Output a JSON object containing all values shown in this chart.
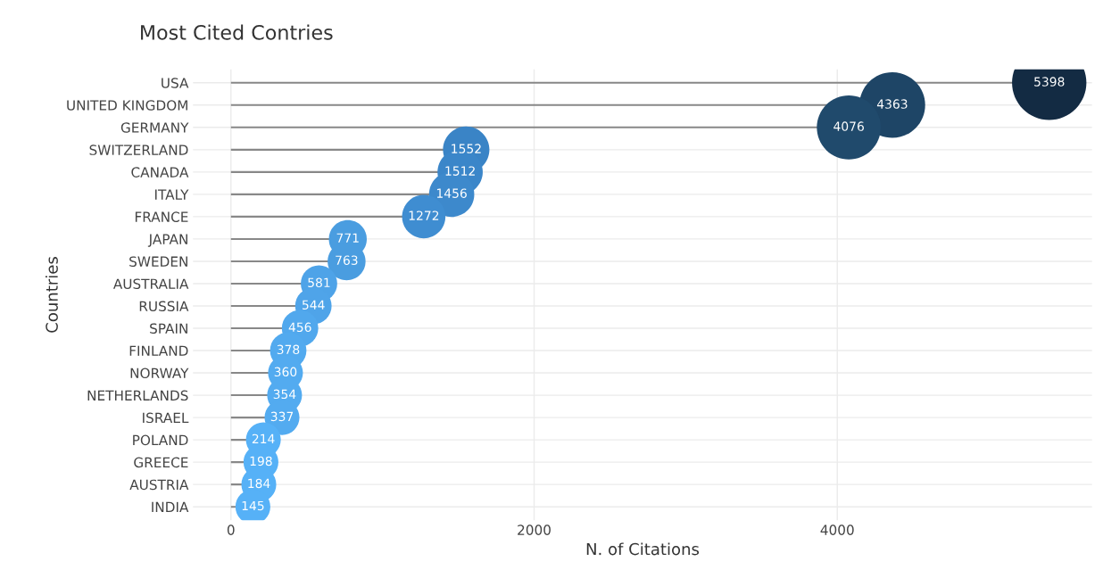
{
  "chart_data": {
    "type": "lollipop",
    "title": "Most Cited Contries",
    "xlabel": "N. of Citations",
    "ylabel": "Countries",
    "orientation": "horizontal",
    "categories": [
      "USA",
      "UNITED KINGDOM",
      "GERMANY",
      "SWITZERLAND",
      "CANADA",
      "ITALY",
      "FRANCE",
      "JAPAN",
      "SWEDEN",
      "AUSTRALIA",
      "RUSSIA",
      "SPAIN",
      "FINLAND",
      "NORWAY",
      "NETHERLANDS",
      "ISRAEL",
      "POLAND",
      "GREECE",
      "AUSTRIA",
      "INDIA"
    ],
    "values": [
      5398,
      4363,
      4076,
      1552,
      1512,
      1456,
      1272,
      771,
      763,
      581,
      544,
      456,
      378,
      360,
      354,
      337,
      214,
      198,
      184,
      145
    ],
    "colors": [
      "#132b43",
      "#1e4566",
      "#204a6c",
      "#3a84c6",
      "#3b86c9",
      "#3d89cc",
      "#3f8dd1",
      "#4a9de0",
      "#4a9de0",
      "#4ea3e8",
      "#4fa4e9",
      "#51a8ed",
      "#52aaef",
      "#53abf0",
      "#53abf0",
      "#53abf0",
      "#56b1f7",
      "#56b1f7",
      "#56b1f7",
      "#56b1f7"
    ],
    "sizes": [
      1,
      0.78,
      0.74,
      0.39,
      0.37,
      0.37,
      0.34,
      0.26,
      0.26,
      0.24,
      0.24,
      0.24,
      0.24,
      0.22,
      0.22,
      0.22,
      0.22,
      0.22,
      0.22,
      0.22
    ],
    "xlim": [
      -250,
      5680
    ],
    "xticks": [
      0,
      2000,
      4000
    ],
    "grid": true,
    "data_labels": true
  }
}
